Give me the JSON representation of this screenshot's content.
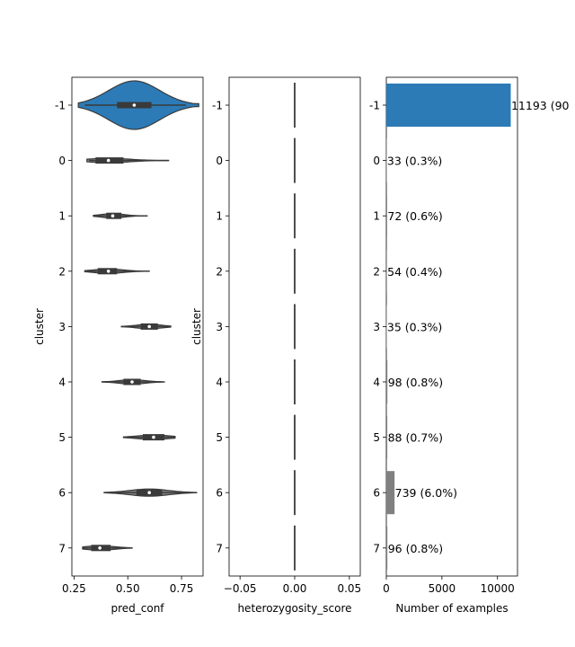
{
  "chart_data": [
    {
      "type": "violin",
      "xlabel": "pred_conf",
      "ylabel": "cluster",
      "xlim": [
        0.24,
        0.85
      ],
      "x_ticks": [
        0.25,
        0.5,
        0.75
      ],
      "x_tick_labels": [
        "0.25",
        "0.50",
        "0.75"
      ],
      "categories": [
        "-1",
        "0",
        "1",
        "2",
        "3",
        "4",
        "5",
        "6",
        "7"
      ],
      "distributions": [
        {
          "cluster": "-1",
          "min": 0.27,
          "q1": 0.45,
          "median": 0.53,
          "q3": 0.61,
          "max": 0.83,
          "whisker_low": 0.3,
          "whisker_high": 0.77,
          "color": "#2c7bb6"
        },
        {
          "cluster": "0",
          "min": 0.31,
          "q1": 0.35,
          "median": 0.41,
          "q3": 0.48,
          "max": 0.69,
          "whisker_low": 0.32,
          "whisker_high": 0.69,
          "color": "#808080"
        },
        {
          "cluster": "1",
          "min": 0.34,
          "q1": 0.4,
          "median": 0.43,
          "q3": 0.47,
          "max": 0.59,
          "whisker_low": 0.34,
          "whisker_high": 0.58,
          "color": "#808080"
        },
        {
          "cluster": "2",
          "min": 0.3,
          "q1": 0.36,
          "median": 0.41,
          "q3": 0.45,
          "max": 0.6,
          "whisker_low": 0.31,
          "whisker_high": 0.59,
          "color": "#808080"
        },
        {
          "cluster": "3",
          "min": 0.47,
          "q1": 0.56,
          "median": 0.6,
          "q3": 0.64,
          "max": 0.7,
          "whisker_low": 0.47,
          "whisker_high": 0.7,
          "color": "#808080"
        },
        {
          "cluster": "4",
          "min": 0.38,
          "q1": 0.48,
          "median": 0.52,
          "q3": 0.56,
          "max": 0.67,
          "whisker_low": 0.38,
          "whisker_high": 0.66,
          "color": "#808080"
        },
        {
          "cluster": "5",
          "min": 0.48,
          "q1": 0.57,
          "median": 0.62,
          "q3": 0.67,
          "max": 0.72,
          "whisker_low": 0.48,
          "whisker_high": 0.72,
          "color": "#808080"
        },
        {
          "cluster": "6",
          "min": 0.39,
          "q1": 0.54,
          "median": 0.6,
          "q3": 0.66,
          "max": 0.82,
          "whisker_low": 0.39,
          "whisker_high": 0.8,
          "color": "#808080"
        },
        {
          "cluster": "7",
          "min": 0.29,
          "q1": 0.33,
          "median": 0.37,
          "q3": 0.42,
          "max": 0.52,
          "whisker_low": 0.29,
          "whisker_high": 0.52,
          "color": "#808080"
        }
      ]
    },
    {
      "type": "violin",
      "xlabel": "heterozygosity_score",
      "ylabel": "cluster",
      "xlim": [
        -0.06,
        0.06
      ],
      "x_ticks": [
        -0.05,
        0,
        0.05
      ],
      "x_tick_labels": [
        "−0.05",
        "0.00",
        "0.05"
      ],
      "categories": [
        "-1",
        "0",
        "1",
        "2",
        "3",
        "4",
        "5",
        "6",
        "7"
      ],
      "values": [
        0,
        0,
        0,
        0,
        0,
        0,
        0,
        0,
        0
      ]
    },
    {
      "type": "bar",
      "orientation": "horizontal",
      "xlabel": "Number of examples",
      "ylabel": "",
      "xlim": [
        0,
        11800
      ],
      "x_ticks": [
        0,
        5000,
        10000
      ],
      "x_tick_labels": [
        "0",
        "5000",
        "10000"
      ],
      "categories": [
        "-1",
        "0",
        "1",
        "2",
        "3",
        "4",
        "5",
        "6",
        "7"
      ],
      "values": [
        11193,
        33,
        72,
        54,
        35,
        98,
        88,
        739,
        96
      ],
      "data_labels": [
        "11193 (90",
        "33 (0.3%)",
        "72 (0.6%)",
        "54 (0.4%)",
        "35 (0.3%)",
        "98 (0.8%)",
        "88 (0.7%)",
        "739 (6.0%)",
        "96 (0.8%)"
      ],
      "colors": [
        "#2c7bb6",
        "#808080",
        "#808080",
        "#808080",
        "#808080",
        "#808080",
        "#808080",
        "#808080",
        "#808080"
      ]
    }
  ]
}
